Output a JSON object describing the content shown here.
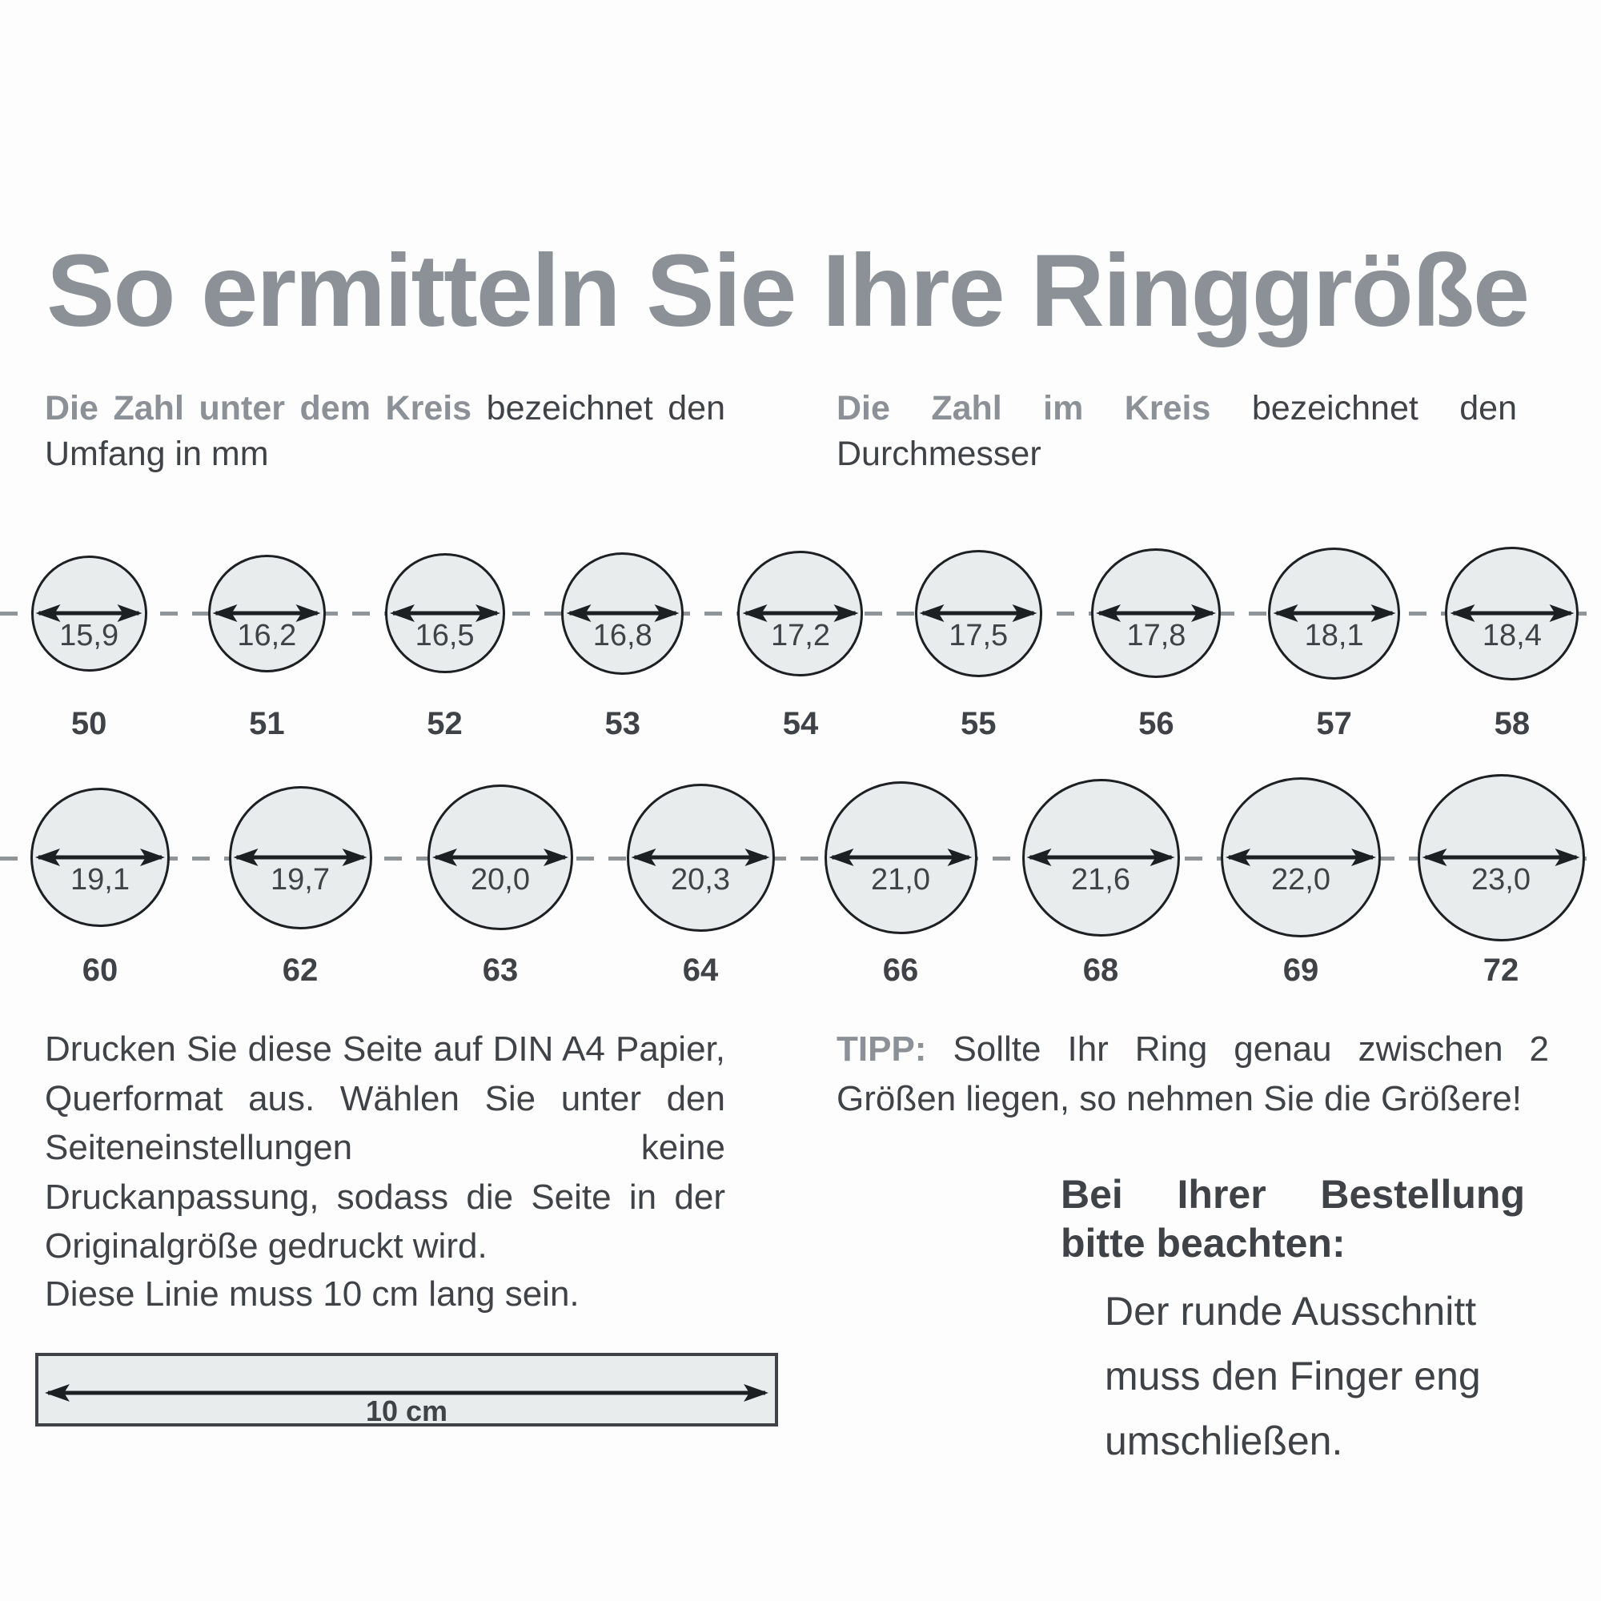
{
  "title": "So ermitteln Sie Ihre Ringgröße",
  "intro_left": {
    "lead": "Die Zahl unter dem Kreis",
    "rest": "bezeichnet den Umfang in mm"
  },
  "intro_right": {
    "lead": "Die Zahl im Kreis",
    "rest": "bezeichnet den Durchmesser"
  },
  "rings": {
    "row1": {
      "items": [
        {
          "diameter": "15,9",
          "mm": 15.9,
          "size": "50"
        },
        {
          "diameter": "16,2",
          "mm": 16.2,
          "size": "51"
        },
        {
          "diameter": "16,5",
          "mm": 16.5,
          "size": "52"
        },
        {
          "diameter": "16,8",
          "mm": 16.8,
          "size": "53"
        },
        {
          "diameter": "17,2",
          "mm": 17.2,
          "size": "54"
        },
        {
          "diameter": "17,5",
          "mm": 17.5,
          "size": "55"
        },
        {
          "diameter": "17,8",
          "mm": 17.8,
          "size": "56"
        },
        {
          "diameter": "18,1",
          "mm": 18.1,
          "size": "57"
        },
        {
          "diameter": "18,4",
          "mm": 18.4,
          "size": "58"
        }
      ]
    },
    "row2": {
      "items": [
        {
          "diameter": "19,1",
          "mm": 19.1,
          "size": "60"
        },
        {
          "diameter": "19,7",
          "mm": 19.7,
          "size": "62"
        },
        {
          "diameter": "20,0",
          "mm": 20.0,
          "size": "63"
        },
        {
          "diameter": "20,3",
          "mm": 20.3,
          "size": "64"
        },
        {
          "diameter": "21,0",
          "mm": 21.0,
          "size": "66"
        },
        {
          "diameter": "21,6",
          "mm": 21.6,
          "size": "68"
        },
        {
          "diameter": "22,0",
          "mm": 22.0,
          "size": "69"
        },
        {
          "diameter": "23,0",
          "mm": 23.0,
          "size": "72"
        }
      ]
    }
  },
  "print_note": "Drucken Sie diese Seite auf DIN A4 Papier, Querformat aus. Wählen Sie unter den Seiteneinstellungen keine Druckanpassung, sodass die Seite in der Originalgröße gedruckt wird.",
  "line_note": "Diese Linie muss 10 cm lang sein.",
  "ruler_label": "10 cm",
  "tip": {
    "lead": "TIPP:",
    "rest": "Sollte Ihr Ring genau zwischen 2 Größen liegen, so nehmen Sie die Größere!"
  },
  "order_note": {
    "heading": "Bei Ihrer Bestellung bitte beachten:",
    "body": "Der runde Ausschnitt muss den Finger eng umschließen."
  },
  "colors": {
    "title_gray": "#8b9196",
    "text_dark": "#3f4347",
    "circle_fill": "#e9ecec",
    "circle_stroke": "#1d2022",
    "dash_gray": "#8f9599",
    "page_bg": "#fdfdfd"
  }
}
